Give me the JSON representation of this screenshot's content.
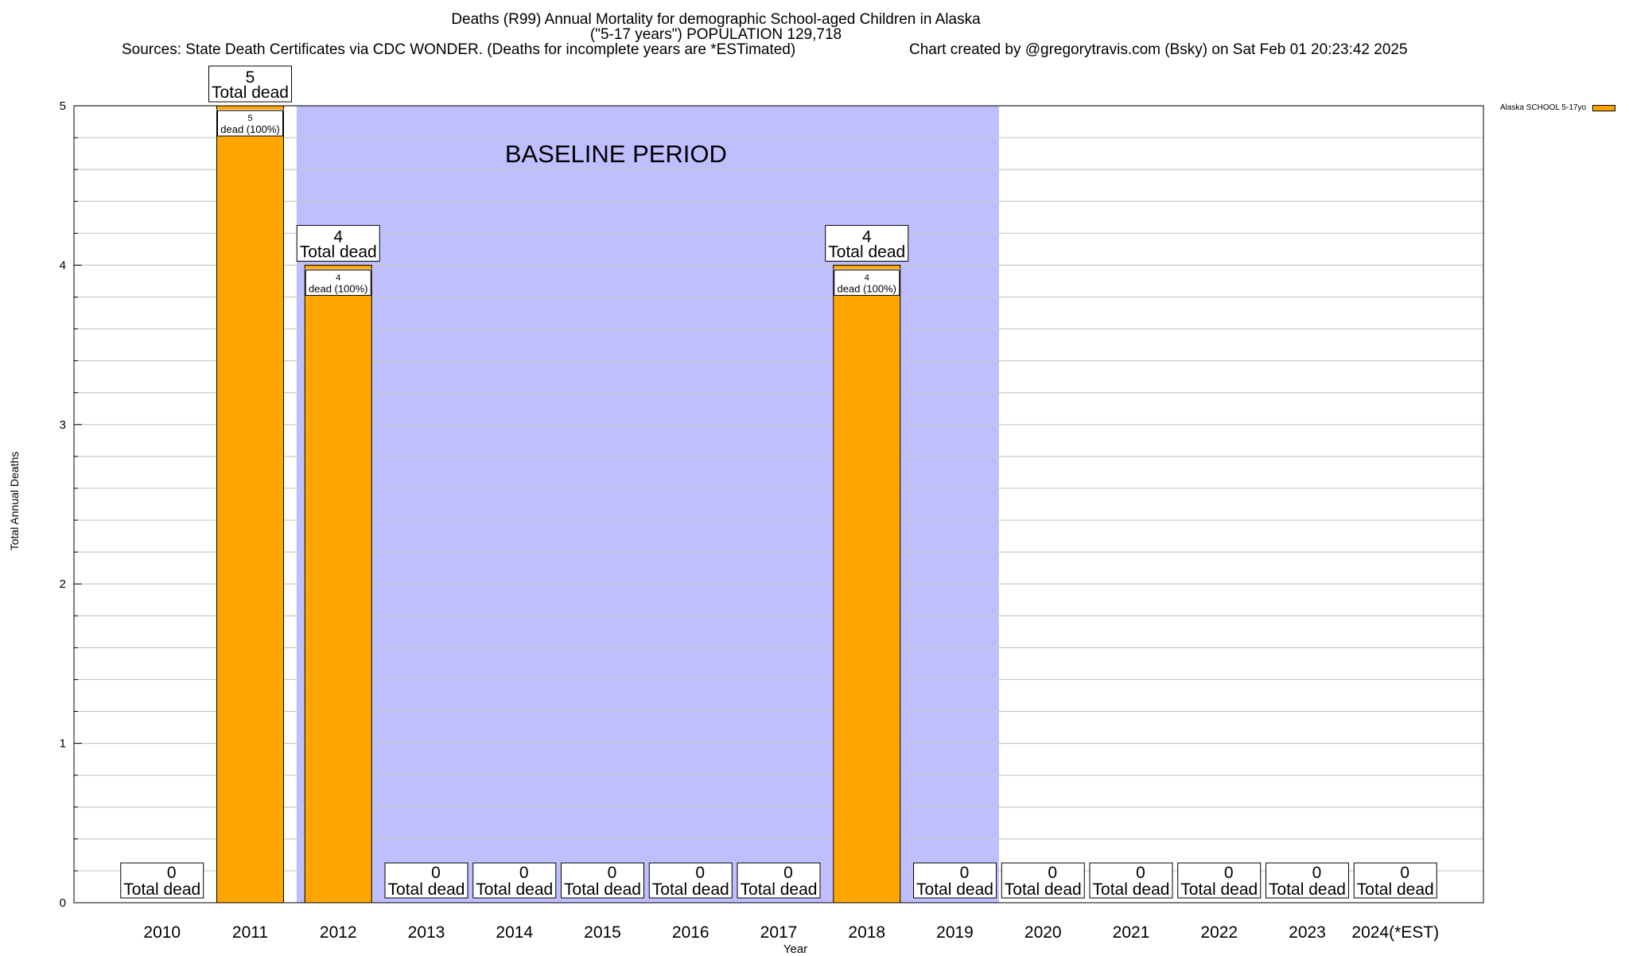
{
  "header": {
    "title_line1": "Deaths (R99) Annual Mortality for demographic School-aged Children in Alaska",
    "title_line2": "(\"5-17 years\") POPULATION 129,718",
    "sources": "Sources: State Death Certificates via CDC WONDER. (Deaths for incomplete years are *ESTimated)",
    "credit": "Chart created by @gregorytravis.com (Bsky) on Sat Feb 01 20:23:42 2025"
  },
  "legend": {
    "label": "Alaska SCHOOL 5-17yo",
    "color": "#FFA500"
  },
  "chart_data": {
    "type": "bar",
    "title": "Deaths (R99) Annual Mortality for demographic School-aged Children in Alaska",
    "subtitle": "(\"5-17 years\") POPULATION 129,718",
    "xlabel": "Year",
    "ylabel": "Total Annual Deaths",
    "ylim": [
      0,
      5
    ],
    "yticks": [
      0,
      1,
      2,
      3,
      4,
      5
    ],
    "grid": true,
    "legend_position": "top-right",
    "categories": [
      "2010",
      "2011",
      "2012",
      "2013",
      "2014",
      "2015",
      "2016",
      "2017",
      "2018",
      "2019",
      "2020",
      "2021",
      "2022",
      "2023",
      "2024(*EST)"
    ],
    "series": [
      {
        "name": "Alaska SCHOOL 5-17yo",
        "values": [
          0,
          5,
          4,
          0,
          0,
          0,
          0,
          0,
          4,
          0,
          0,
          0,
          0,
          0,
          0
        ],
        "color": "#FFA500"
      }
    ],
    "total_label_suffix": "Total dead",
    "inner_label_suffix": "dead (100%)",
    "baseline": {
      "label": "BASELINE PERIOD",
      "start": "2012",
      "end": "2019",
      "color": "#BFBFFF"
    }
  }
}
